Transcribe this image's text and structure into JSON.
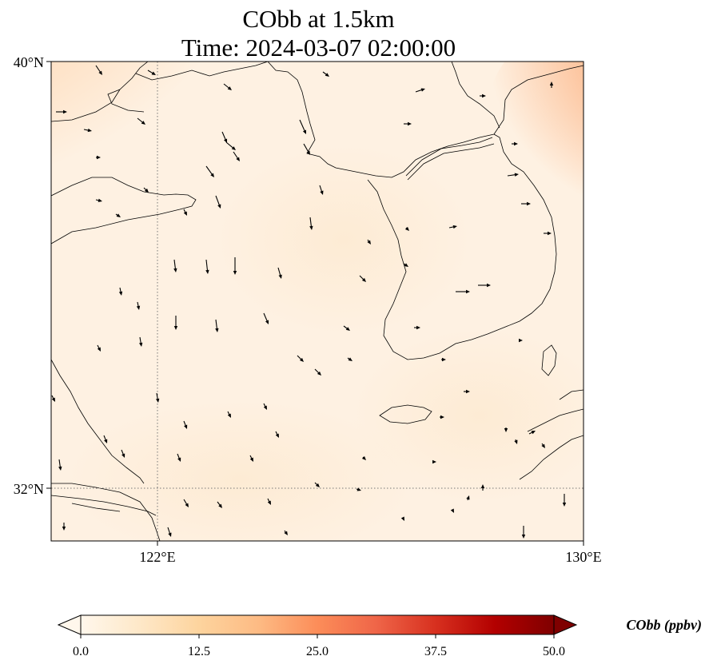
{
  "title": {
    "line1": "CObb at 1.5km",
    "line2": "Time: 2024-03-07 02:00:00"
  },
  "map": {
    "lat_range": [
      31.0,
      40.0
    ],
    "lon_range": [
      120.0,
      130.0
    ],
    "lat_ticks": [
      {
        "value": 32,
        "label": "32°N"
      },
      {
        "value": 40,
        "label": "40°N"
      }
    ],
    "lon_ticks": [
      {
        "value": 122,
        "label": "122°E"
      },
      {
        "value": 130,
        "label": "130°E"
      }
    ],
    "gridlines": true,
    "colors": {
      "land_outline": "#000000",
      "gridline": "#777777",
      "field_low": "#fff5eb",
      "field_mid": "#fdb27a",
      "field_high": "#7f0000"
    }
  },
  "colorbar": {
    "label": "CObb (ppbv)",
    "ticks": [
      "0.0",
      "12.5",
      "25.0",
      "37.5",
      "50.0"
    ],
    "range": [
      0,
      50
    ],
    "extend": "both",
    "colormap": "OrRd"
  }
}
